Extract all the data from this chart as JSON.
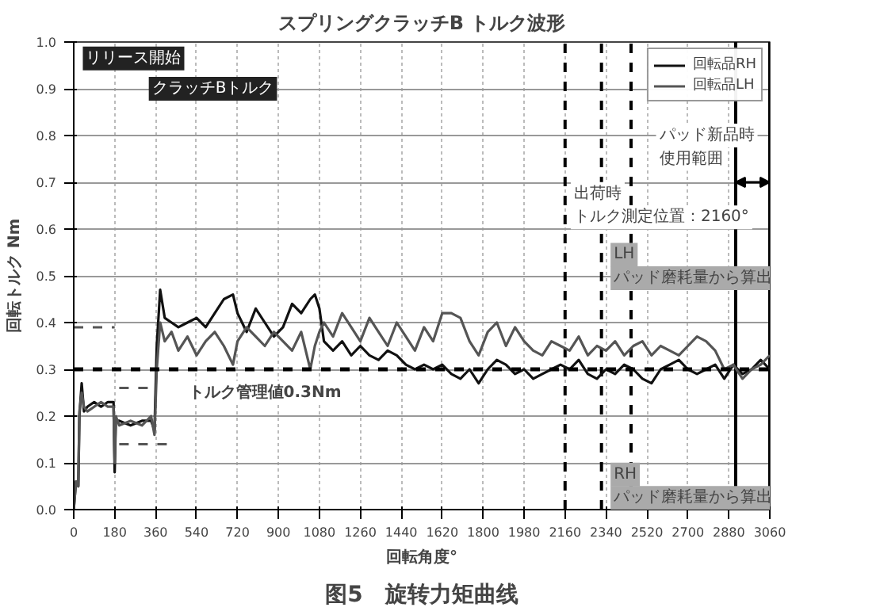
{
  "chart_data": {
    "type": "line",
    "title": "スプリングクラッチB トルク波形",
    "xlabel": "回転角度°",
    "ylabel": "回転トルク Nm",
    "xlim": [
      0,
      3060
    ],
    "xticks": [
      0,
      180,
      360,
      540,
      720,
      900,
      1080,
      1260,
      1440,
      1620,
      1800,
      1980,
      2160,
      2340,
      2520,
      2700,
      2880,
      3060
    ],
    "ylim": [
      0,
      1.0
    ],
    "yticks": [
      {
        "value": 0,
        "label": "0.0"
      },
      0.1,
      0.2,
      0.3,
      0.4,
      0.5,
      0.6,
      0.7,
      0.8,
      0.9,
      {
        "value": 1,
        "label": "1.0"
      }
    ],
    "grid": true,
    "legend": "top right",
    "line_style": "solid",
    "marker": "none",
    "series": [
      {
        "name": "回転品RH",
        "color": "#111111",
        "x": [
          0,
          10,
          20,
          25,
          35,
          45,
          60,
          90,
          120,
          150,
          175,
          180,
          185,
          200,
          250,
          300,
          340,
          355,
          365,
          380,
          400,
          430,
          460,
          500,
          540,
          580,
          620,
          660,
          700,
          720,
          760,
          800,
          840,
          880,
          920,
          960,
          1000,
          1040,
          1060,
          1080,
          1100,
          1140,
          1180,
          1220,
          1260,
          1300,
          1340,
          1380,
          1420,
          1460,
          1500,
          1540,
          1580,
          1620,
          1660,
          1700,
          1740,
          1780,
          1820,
          1860,
          1900,
          1940,
          1980,
          2020,
          2060,
          2100,
          2140,
          2180,
          2220,
          2260,
          2300,
          2340,
          2380,
          2420,
          2460,
          2500,
          2540,
          2580,
          2620,
          2660,
          2700,
          2740,
          2780,
          2820,
          2860,
          2900,
          2940,
          2980,
          3020,
          3060
        ],
        "values": [
          0,
          0.06,
          0.05,
          0.2,
          0.27,
          0.21,
          0.22,
          0.23,
          0.22,
          0.23,
          0.23,
          0.08,
          0.19,
          0.19,
          0.18,
          0.19,
          0.19,
          0.17,
          0.35,
          0.47,
          0.41,
          0.4,
          0.39,
          0.4,
          0.41,
          0.39,
          0.42,
          0.45,
          0.46,
          0.42,
          0.38,
          0.43,
          0.4,
          0.37,
          0.39,
          0.44,
          0.42,
          0.45,
          0.46,
          0.43,
          0.36,
          0.34,
          0.36,
          0.33,
          0.35,
          0.33,
          0.32,
          0.34,
          0.33,
          0.31,
          0.3,
          0.31,
          0.3,
          0.31,
          0.29,
          0.28,
          0.3,
          0.27,
          0.3,
          0.32,
          0.31,
          0.29,
          0.3,
          0.28,
          0.29,
          0.3,
          0.31,
          0.3,
          0.32,
          0.29,
          0.28,
          0.3,
          0.29,
          0.31,
          0.3,
          0.28,
          0.27,
          0.3,
          0.31,
          0.32,
          0.3,
          0.29,
          0.3,
          0.31,
          0.28,
          0.31,
          0.29,
          0.3,
          0.32,
          0.3
        ]
      },
      {
        "name": "回転品LH",
        "color": "#555555",
        "x": [
          0,
          10,
          20,
          25,
          35,
          45,
          60,
          90,
          120,
          150,
          175,
          180,
          185,
          200,
          250,
          300,
          340,
          355,
          365,
          380,
          400,
          430,
          460,
          500,
          540,
          580,
          620,
          660,
          700,
          720,
          760,
          800,
          840,
          880,
          920,
          960,
          1000,
          1040,
          1060,
          1080,
          1100,
          1140,
          1180,
          1220,
          1260,
          1300,
          1340,
          1380,
          1420,
          1460,
          1500,
          1540,
          1580,
          1620,
          1660,
          1700,
          1740,
          1780,
          1820,
          1860,
          1900,
          1940,
          1980,
          2020,
          2060,
          2100,
          2140,
          2180,
          2220,
          2260,
          2300,
          2340,
          2380,
          2420,
          2460,
          2500,
          2540,
          2580,
          2620,
          2660,
          2700,
          2740,
          2780,
          2820,
          2860,
          2900,
          2940,
          2980,
          3020,
          3060
        ],
        "values": [
          0,
          0.06,
          0.05,
          0.21,
          0.25,
          0.22,
          0.21,
          0.22,
          0.23,
          0.22,
          0.22,
          0.1,
          0.2,
          0.18,
          0.19,
          0.18,
          0.2,
          0.16,
          0.3,
          0.4,
          0.36,
          0.38,
          0.34,
          0.37,
          0.33,
          0.36,
          0.38,
          0.35,
          0.31,
          0.36,
          0.39,
          0.37,
          0.35,
          0.38,
          0.36,
          0.34,
          0.38,
          0.3,
          0.35,
          0.38,
          0.4,
          0.37,
          0.42,
          0.39,
          0.36,
          0.41,
          0.38,
          0.35,
          0.4,
          0.37,
          0.34,
          0.39,
          0.36,
          0.42,
          0.42,
          0.41,
          0.36,
          0.33,
          0.38,
          0.4,
          0.35,
          0.39,
          0.36,
          0.34,
          0.33,
          0.36,
          0.35,
          0.34,
          0.37,
          0.33,
          0.35,
          0.34,
          0.36,
          0.33,
          0.35,
          0.36,
          0.33,
          0.35,
          0.34,
          0.33,
          0.35,
          0.37,
          0.36,
          0.34,
          0.3,
          0.31,
          0.28,
          0.3,
          0.31,
          0.33
        ]
      },
      {
        "color": "#555555",
        "line_style": "dashed",
        "x": [
          0,
          180
        ],
        "values": [
          0.39,
          0.39
        ]
      },
      {
        "color": "#555555",
        "line_style": "dashed",
        "x": [
          200,
          330
        ],
        "values": [
          0.26,
          0.26
        ]
      },
      {
        "color": "#555555",
        "line_style": "dashed",
        "x": [
          200,
          420
        ],
        "values": [
          0.14,
          0.14
        ]
      }
    ],
    "ref_lines": [
      {
        "axis": "y",
        "value": 0.3,
        "line_style": "dashed"
      },
      {
        "axis": "x",
        "value": 2160,
        "line_style": "dashed"
      },
      {
        "axis": "x",
        "value": 2320,
        "line_style": "dashed"
      },
      {
        "axis": "x",
        "value": 2450,
        "line_style": "dashed"
      },
      {
        "axis": "x",
        "value": 2910,
        "line_style": "solid"
      },
      {
        "axis": "x",
        "value": 3060,
        "line_style": "solid"
      }
    ],
    "annotations": [
      "リリース開始",
      "クラッチBトルク",
      "トルク管理値0.3Nm",
      "出荷時",
      "トルク測定位置：2160°",
      "パッド新品時",
      {
        "text": "使用範囲",
        "x": 2910,
        "y": 0.7
      },
      "LH",
      "パッド磨耗量から算出",
      "RH",
      "パッド磨耗量から算出",
      "图5　旋转力矩曲线"
    ]
  }
}
